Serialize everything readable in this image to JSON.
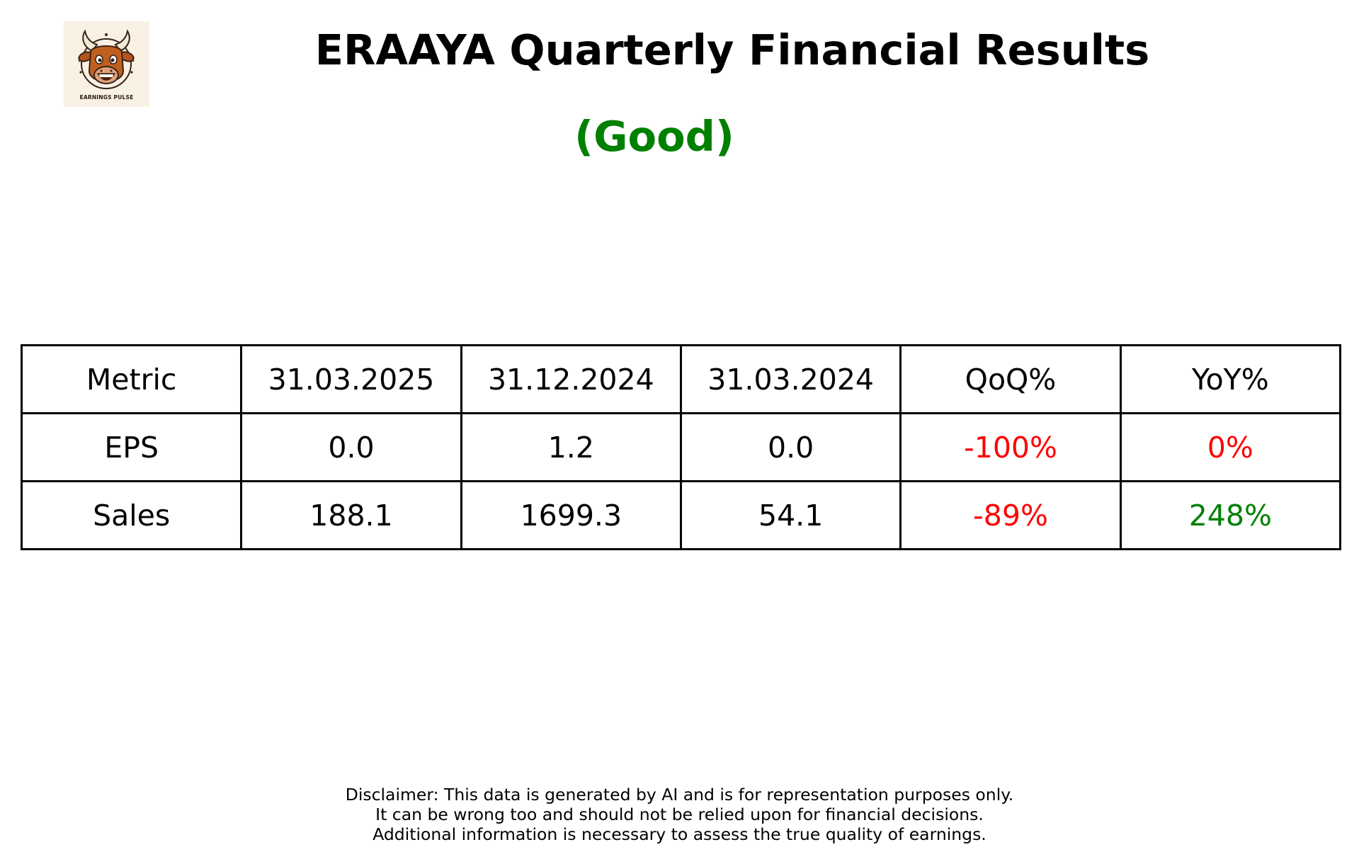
{
  "logo": {
    "text": "EARNINGS PULSE",
    "icon": "bull-face-icon"
  },
  "title": "ERAAYA Quarterly Financial Results",
  "rating": "(Good)",
  "colors": {
    "rating": "#008000",
    "negative": "#ff0000",
    "positive": "#008000",
    "border": "#000000"
  },
  "table": {
    "headers": [
      "Metric",
      "31.03.2025",
      "31.12.2024",
      "31.03.2024",
      "QoQ%",
      "YoY%"
    ],
    "rows": [
      {
        "metric": "EPS",
        "q1": "0.0",
        "q2": "1.2",
        "q3": "0.0",
        "qoq": "-100%",
        "yoy": "0%"
      },
      {
        "metric": "Sales",
        "q1": "188.1",
        "q2": "1699.3",
        "q3": "54.1",
        "qoq": "-89%",
        "yoy": "248%"
      }
    ]
  },
  "disclaimer": {
    "line1": "Disclaimer: This data is generated by AI and is for representation purposes only.",
    "line2": "It can be wrong too and should not be relied upon for financial decisions.",
    "line3": "Additional information is necessary to assess the true quality of earnings."
  }
}
